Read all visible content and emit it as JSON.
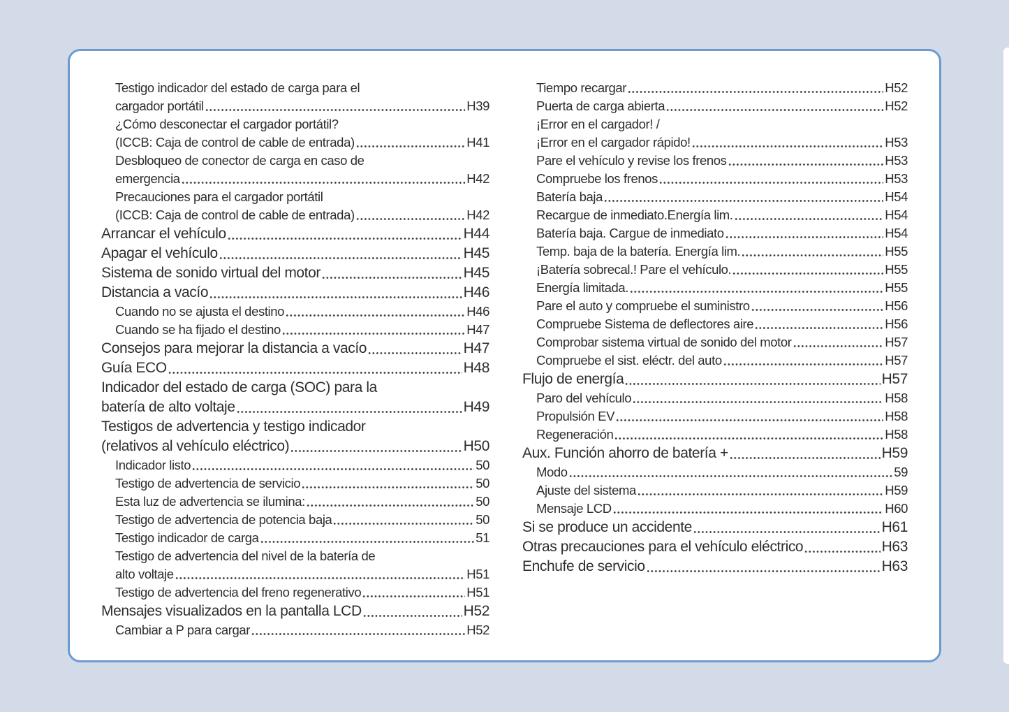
{
  "page": {
    "background_color": "#d3dbe8",
    "card_background": "#ffffff",
    "card_border_color": "#6c9bd0",
    "text_color": "#2e2e2e"
  },
  "toc": {
    "columns": [
      {
        "entries": [
          {
            "level": "sub",
            "lines": [
              "Testigo indicador del estado de carga para el",
              "cargador portátil"
            ],
            "page": "H39"
          },
          {
            "level": "sub",
            "lines": [
              "¿Cómo desconectar el cargador portátil?",
              "(ICCB: Caja de control de cable de entrada)"
            ],
            "page": "H41"
          },
          {
            "level": "sub",
            "lines": [
              "Desbloqueo de conector de carga en caso de",
              "emergencia"
            ],
            "page": "H42"
          },
          {
            "level": "sub",
            "lines": [
              "Precauciones para el cargador portátil",
              "(ICCB: Caja de control de cable de entrada)"
            ],
            "page": "H42"
          },
          {
            "level": "main",
            "lines": [
              "Arrancar el vehículo"
            ],
            "page": "H44"
          },
          {
            "level": "main",
            "lines": [
              "Apagar el vehículo"
            ],
            "page": "H45"
          },
          {
            "level": "main",
            "lines": [
              "Sistema de sonido virtual del motor"
            ],
            "page": "H45"
          },
          {
            "level": "main",
            "lines": [
              "Distancia a vacío"
            ],
            "page": "H46"
          },
          {
            "level": "sub",
            "lines": [
              "Cuando no se ajusta el destino"
            ],
            "page": "H46"
          },
          {
            "level": "sub",
            "lines": [
              "Cuando se ha fijado el destino"
            ],
            "page": "H47"
          },
          {
            "level": "main",
            "lines": [
              "Consejos para mejorar la distancia a vacío"
            ],
            "page": "H47"
          },
          {
            "level": "main",
            "lines": [
              "Guía ECO"
            ],
            "page": "H48"
          },
          {
            "level": "main",
            "lines": [
              "Indicador del estado de carga (SOC) para la",
              "batería de alto voltaje"
            ],
            "page": "H49"
          },
          {
            "level": "main",
            "lines": [
              "Testigos de advertencia y testigo indicador",
              "(relativos al vehículo eléctrico)"
            ],
            "page": "H50"
          },
          {
            "level": "sub",
            "lines": [
              "Indicador listo"
            ],
            "page": "50"
          },
          {
            "level": "sub",
            "lines": [
              "Testigo de advertencia de servicio"
            ],
            "page": "50"
          },
          {
            "level": "sub",
            "lines": [
              "Esta luz de advertencia se ilumina:"
            ],
            "page": "50"
          },
          {
            "level": "sub",
            "lines": [
              "Testigo de advertencia de potencia baja"
            ],
            "page": "50"
          },
          {
            "level": "sub",
            "lines": [
              "Testigo indicador de carga"
            ],
            "page": "51"
          },
          {
            "level": "sub",
            "lines": [
              "Testigo de advertencia del nivel de la batería de",
              "alto voltaje"
            ],
            "page": "H51"
          },
          {
            "level": "sub",
            "lines": [
              "Testigo de advertencia del freno regenerativo"
            ],
            "page": "H51"
          },
          {
            "level": "main",
            "lines": [
              "Mensajes visualizados en la pantalla LCD"
            ],
            "page": "H52"
          },
          {
            "level": "sub",
            "lines": [
              "Cambiar a P para cargar"
            ],
            "page": "H52"
          }
        ]
      },
      {
        "entries": [
          {
            "level": "sub",
            "lines": [
              "Tiempo recargar"
            ],
            "page": "H52"
          },
          {
            "level": "sub",
            "lines": [
              "Puerta de carga abierta"
            ],
            "page": "H52"
          },
          {
            "level": "sub",
            "lines": [
              "¡Error en el cargador! /",
              "¡Error en el cargador rápido!"
            ],
            "page": "H53"
          },
          {
            "level": "sub",
            "lines": [
              "Pare el vehículo y revise los frenos"
            ],
            "page": "H53"
          },
          {
            "level": "sub",
            "lines": [
              "Compruebe los frenos"
            ],
            "page": "H53"
          },
          {
            "level": "sub",
            "lines": [
              "Batería baja"
            ],
            "page": "H54"
          },
          {
            "level": "sub",
            "lines": [
              "Recargue de inmediato.Energía lim."
            ],
            "page": "H54"
          },
          {
            "level": "sub",
            "lines": [
              "Batería baja. Cargue de inmediato"
            ],
            "page": "H54"
          },
          {
            "level": "sub",
            "lines": [
              "Temp. baja de la batería. Energía lim."
            ],
            "page": "H55"
          },
          {
            "level": "sub",
            "lines": [
              "¡Batería sobrecal.! Pare el vehículo."
            ],
            "page": "H55"
          },
          {
            "level": "sub",
            "lines": [
              "Energía limitada."
            ],
            "page": "H55"
          },
          {
            "level": "sub",
            "lines": [
              "Pare el auto y compruebe el suministro"
            ],
            "page": "H56"
          },
          {
            "level": "sub",
            "lines": [
              "Compruebe Sistema de deflectores aire"
            ],
            "page": "H56"
          },
          {
            "level": "sub",
            "lines": [
              "Comprobar sistema virtual de sonido del motor"
            ],
            "page": "H57"
          },
          {
            "level": "sub",
            "lines": [
              "Compruebe el sist. eléctr. del auto"
            ],
            "page": "H57"
          },
          {
            "level": "main",
            "lines": [
              "Flujo de energía"
            ],
            "page": "H57"
          },
          {
            "level": "sub",
            "lines": [
              "Paro del vehículo"
            ],
            "page": "H58"
          },
          {
            "level": "sub",
            "lines": [
              "Propulsión EV"
            ],
            "page": "H58"
          },
          {
            "level": "sub",
            "lines": [
              "Regeneración"
            ],
            "page": "H58"
          },
          {
            "level": "main",
            "lines": [
              "Aux. Función ahorro de batería +"
            ],
            "page": "H59"
          },
          {
            "level": "sub",
            "lines": [
              "Modo"
            ],
            "page": "59"
          },
          {
            "level": "sub",
            "lines": [
              "Ajuste del sistema"
            ],
            "page": "H59"
          },
          {
            "level": "sub",
            "lines": [
              "Mensaje LCD"
            ],
            "page": "H60"
          },
          {
            "level": "main",
            "lines": [
              "Si se produce un accidente"
            ],
            "page": "H61"
          },
          {
            "level": "main",
            "lines": [
              "Otras precauciones para el vehículo eléctrico"
            ],
            "page": "H63"
          },
          {
            "level": "main",
            "lines": [
              "Enchufe de servicio"
            ],
            "page": "H63"
          }
        ]
      }
    ]
  }
}
